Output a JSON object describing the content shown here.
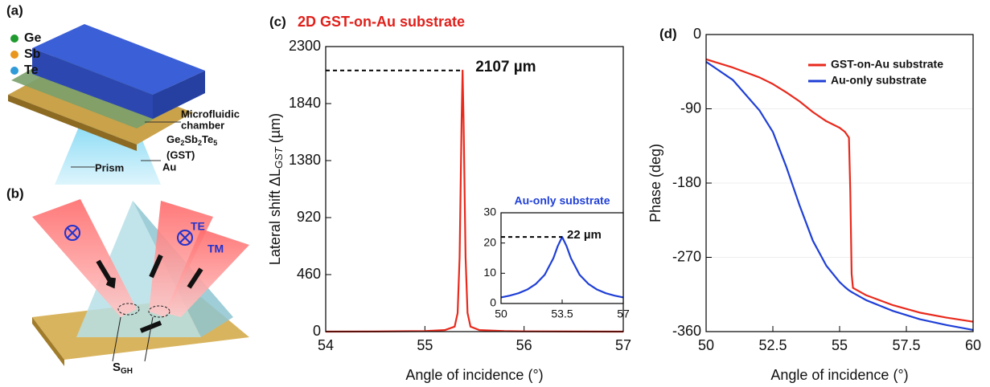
{
  "illustrations": {
    "a": {
      "panel_label": "(a)",
      "elements": [
        "Ge",
        "Sb",
        "Te"
      ],
      "element_colors": [
        "#1f9a2e",
        "#e8961c",
        "#2f9bd8"
      ],
      "chamber": [
        "Microfluidic",
        "chamber"
      ],
      "gst_formula": [
        "Ge",
        "2",
        "Sb",
        "2",
        "Te",
        "5"
      ],
      "gst_abbr": "(GST)",
      "metal": "Au",
      "prism": "Prism"
    },
    "b": {
      "panel_label": "(b)",
      "te": "TE",
      "tm": "TM",
      "shift": [
        "S",
        "GH"
      ]
    }
  },
  "chart_data": [
    {
      "type": "line",
      "panel_label": "(c)",
      "title": "2D GST-on-Au substrate",
      "title_color": "#e0201b",
      "xlabel": "Angle of incidence (°)",
      "ylabel": {
        "text": "Lateral shift ΔL",
        "sub": "GST",
        "unit": "(µm)"
      },
      "x": [
        54,
        54.5,
        55,
        55.2,
        55.3,
        55.33,
        55.35,
        55.37,
        55.38,
        55.39,
        55.41,
        55.43,
        55.46,
        55.55,
        55.8,
        56,
        56.5,
        57
      ],
      "series": [
        {
          "color": "#e8291c",
          "values": [
            0,
            1,
            4,
            12,
            40,
            150,
            600,
            1700,
            2107,
            1700,
            600,
            150,
            40,
            12,
            4,
            2,
            1,
            0
          ]
        }
      ],
      "xlim": [
        54,
        57
      ],
      "xticks": [
        54,
        55,
        56,
        57
      ],
      "ylim": [
        0,
        2300
      ],
      "yticks": [
        0,
        460,
        920,
        1380,
        1840,
        2300
      ],
      "annotation": {
        "text": "2107 µm",
        "x": 55.38,
        "y": 2107
      }
    },
    {
      "type": "line",
      "title": "Au-only substrate",
      "title_color": "#1f3fd6",
      "x": [
        50,
        50.5,
        51,
        51.5,
        52,
        52.5,
        53,
        53.25,
        53.5,
        53.75,
        54,
        54.5,
        55,
        55.5,
        56,
        56.5,
        57
      ],
      "series": [
        {
          "color": "#1f3fd6",
          "values": [
            2,
            2.6,
            3.4,
            4.6,
            6.5,
            9.5,
            15,
            19,
            22,
            19,
            15,
            9.5,
            6.5,
            4.6,
            3.4,
            2.6,
            2
          ]
        }
      ],
      "xlim": [
        50,
        57
      ],
      "xticks": [
        50,
        53.5,
        57
      ],
      "ylim": [
        0,
        30
      ],
      "yticks": [
        0,
        10,
        20,
        30
      ],
      "annotation": {
        "text": "22 µm",
        "x": 53.5,
        "y": 22
      }
    },
    {
      "type": "line",
      "panel_label": "(d)",
      "xlabel": "Angle of incidence (°)",
      "ylabel": "Phase (deg)",
      "x": [
        50,
        51,
        52,
        52.5,
        53,
        53.5,
        54,
        54.5,
        55,
        55.2,
        55.35,
        55.4,
        55.45,
        55.5,
        56,
        57,
        58,
        59,
        60
      ],
      "series": [
        {
          "name": "GST-on-Au substrate",
          "color": "#e8291c",
          "values": [
            -30,
            -40,
            -52,
            -60,
            -70,
            -81,
            -94,
            -105,
            -113,
            -118,
            -125,
            -190,
            -290,
            -307,
            -316,
            -328,
            -337,
            -343,
            -348
          ]
        },
        {
          "name": "Au-only substrate",
          "color": "#1f3fd6",
          "values": [
            -33,
            -55,
            -92,
            -118,
            -160,
            -207,
            -250,
            -280,
            -300,
            -306,
            -310,
            -311,
            -312,
            -313,
            -322,
            -335,
            -345,
            -352,
            -358
          ]
        }
      ],
      "xlim": [
        50,
        60
      ],
      "xticks": [
        50,
        52.5,
        55,
        57.5,
        60
      ],
      "ylim": [
        -360,
        0
      ],
      "yticks": [
        0,
        -90,
        -180,
        -270,
        -360
      ],
      "grid": true,
      "legend": "upper right"
    }
  ]
}
